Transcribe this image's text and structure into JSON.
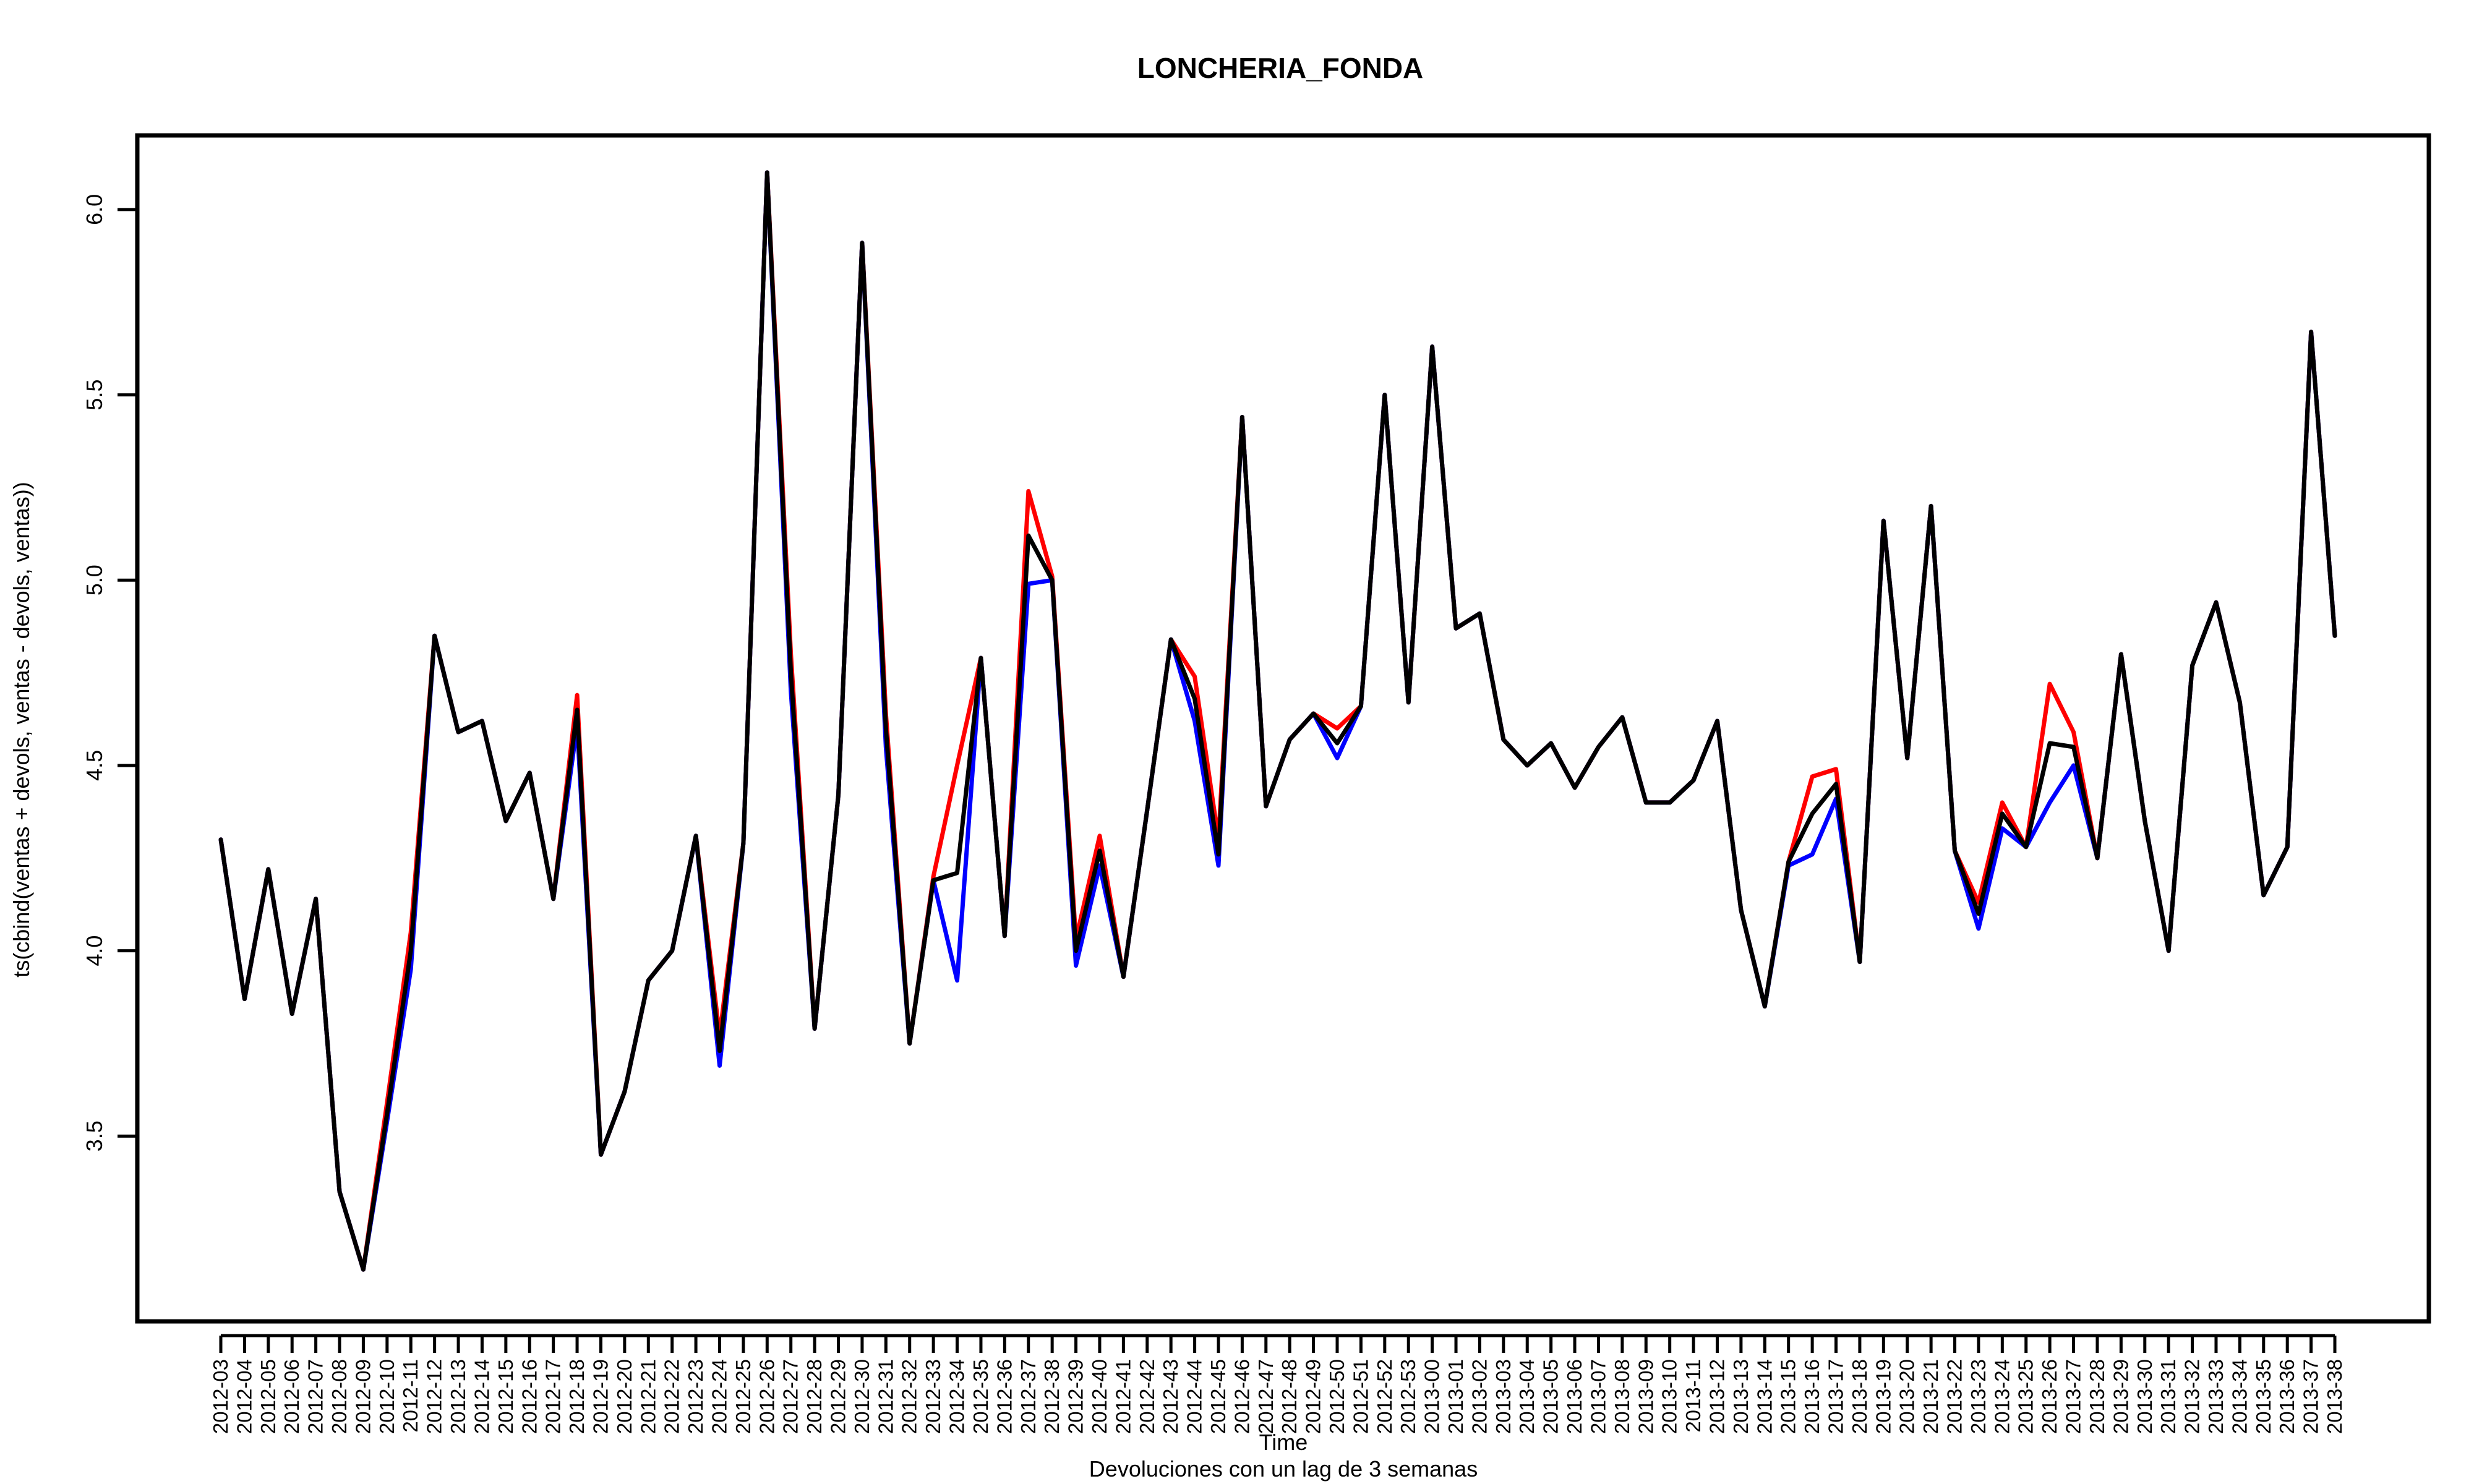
{
  "chart_data": {
    "type": "line",
    "title": "LONCHERIA_FONDA",
    "xlabel": "Time",
    "ylabel": "ts(cbind(ventas + devols, ventas - devols, ventas))",
    "subtitle": "Devoluciones con un lag de 3 semanas",
    "ylim": [
      3.0,
      6.2
    ],
    "yticks": [
      3.5,
      4.0,
      4.5,
      5.0,
      5.5,
      6.0
    ],
    "ytick_labels": [
      "3.5",
      "4.0",
      "4.5",
      "5.0",
      "5.5",
      "6.0"
    ],
    "grid": false,
    "legend": "none",
    "categories": [
      "2012-03",
      "2012-04",
      "2012-05",
      "2012-06",
      "2012-07",
      "2012-08",
      "2012-09",
      "2012-10",
      "2012-11",
      "2012-12",
      "2012-13",
      "2012-14",
      "2012-15",
      "2012-16",
      "2012-17",
      "2012-18",
      "2012-19",
      "2012-20",
      "2012-21",
      "2012-22",
      "2012-23",
      "2012-24",
      "2012-25",
      "2012-26",
      "2012-27",
      "2012-28",
      "2012-29",
      "2012-30",
      "2012-31",
      "2012-32",
      "2012-33",
      "2012-34",
      "2012-35",
      "2012-36",
      "2012-37",
      "2012-38",
      "2012-39",
      "2012-40",
      "2012-41",
      "2012-42",
      "2012-43",
      "2012-44",
      "2012-45",
      "2012-46",
      "2012-47",
      "2012-48",
      "2012-49",
      "2012-50",
      "2012-51",
      "2012-52",
      "2012-53",
      "2013-00",
      "2013-01",
      "2013-02",
      "2013-03",
      "2013-04",
      "2013-05",
      "2013-06",
      "2013-07",
      "2013-08",
      "2013-09",
      "2013-10",
      "2013-11",
      "2013-12",
      "2013-13",
      "2013-14",
      "2013-15",
      "2013-16",
      "2013-17",
      "2013-18",
      "2013-19",
      "2013-20",
      "2013-21",
      "2013-22",
      "2013-23",
      "2013-24",
      "2013-25",
      "2013-26",
      "2013-27",
      "2013-28",
      "2013-29",
      "2013-30",
      "2013-31",
      "2013-32",
      "2013-33",
      "2013-34",
      "2013-35",
      "2013-36",
      "2013-37",
      "2013-38"
    ],
    "series": [
      {
        "color": "#ff0000",
        "values": [
          4.3,
          3.87,
          4.22,
          3.83,
          4.14,
          3.35,
          3.14,
          3.59,
          4.05,
          4.85,
          4.59,
          4.62,
          4.35,
          4.48,
          4.14,
          4.69,
          3.45,
          3.62,
          3.92,
          4.0,
          4.31,
          3.77,
          4.29,
          6.1,
          4.8,
          3.79,
          4.42,
          5.91,
          4.64,
          3.75,
          4.2,
          4.5,
          4.79,
          4.04,
          5.24,
          5.01,
          4.03,
          4.31,
          3.93,
          4.38,
          4.84,
          4.74,
          4.3,
          5.44,
          4.39,
          4.57,
          4.64,
          4.6,
          4.66,
          5.5,
          4.67,
          5.63,
          4.87,
          4.91,
          4.57,
          4.5,
          4.56,
          4.44,
          4.55,
          4.63,
          4.4,
          4.4,
          4.46,
          4.62,
          4.11,
          3.85,
          4.24,
          4.47,
          4.49,
          3.97,
          5.16,
          4.52,
          5.2,
          4.27,
          4.13,
          4.4,
          4.28,
          4.72,
          4.59,
          4.25,
          4.8,
          4.35,
          4.0,
          4.77,
          4.94,
          4.67,
          4.15,
          4.28,
          5.67,
          4.85
        ]
      },
      {
        "color": "#0000ff",
        "values": [
          4.3,
          3.87,
          4.22,
          3.83,
          4.14,
          3.35,
          3.14,
          3.54,
          3.95,
          4.85,
          4.59,
          4.62,
          4.35,
          4.48,
          4.14,
          4.61,
          3.45,
          3.62,
          3.92,
          4.0,
          4.31,
          3.69,
          4.29,
          6.1,
          4.7,
          3.79,
          4.42,
          5.91,
          4.55,
          3.75,
          4.19,
          3.92,
          4.79,
          4.04,
          4.99,
          5.0,
          3.96,
          4.23,
          3.93,
          4.38,
          4.84,
          4.62,
          4.23,
          5.44,
          4.39,
          4.57,
          4.64,
          4.52,
          4.66,
          5.5,
          4.67,
          5.63,
          4.87,
          4.91,
          4.57,
          4.5,
          4.56,
          4.44,
          4.55,
          4.63,
          4.4,
          4.4,
          4.46,
          4.62,
          4.11,
          3.85,
          4.23,
          4.26,
          4.41,
          3.97,
          5.16,
          4.52,
          5.2,
          4.27,
          4.06,
          4.33,
          4.28,
          4.4,
          4.5,
          4.25,
          4.8,
          4.35,
          4.0,
          4.77,
          4.94,
          4.67,
          4.15,
          4.28,
          5.67,
          4.85
        ]
      },
      {
        "color": "#000000",
        "values": [
          4.3,
          3.87,
          4.22,
          3.83,
          4.14,
          3.35,
          3.14,
          3.56,
          4.0,
          4.85,
          4.59,
          4.62,
          4.35,
          4.48,
          4.14,
          4.65,
          3.45,
          3.62,
          3.92,
          4.0,
          4.31,
          3.73,
          4.29,
          6.1,
          4.75,
          3.79,
          4.42,
          5.91,
          4.6,
          3.75,
          4.19,
          4.21,
          4.79,
          4.04,
          5.12,
          5.0,
          4.0,
          4.27,
          3.93,
          4.38,
          4.84,
          4.68,
          4.26,
          5.44,
          4.39,
          4.57,
          4.64,
          4.56,
          4.66,
          5.5,
          4.67,
          5.63,
          4.87,
          4.91,
          4.57,
          4.5,
          4.56,
          4.44,
          4.55,
          4.63,
          4.4,
          4.4,
          4.46,
          4.62,
          4.11,
          3.85,
          4.24,
          4.37,
          4.45,
          3.97,
          5.16,
          4.52,
          5.2,
          4.27,
          4.1,
          4.37,
          4.28,
          4.56,
          4.55,
          4.25,
          4.8,
          4.35,
          4.0,
          4.77,
          4.94,
          4.67,
          4.15,
          4.28,
          5.67,
          4.85
        ]
      }
    ]
  }
}
